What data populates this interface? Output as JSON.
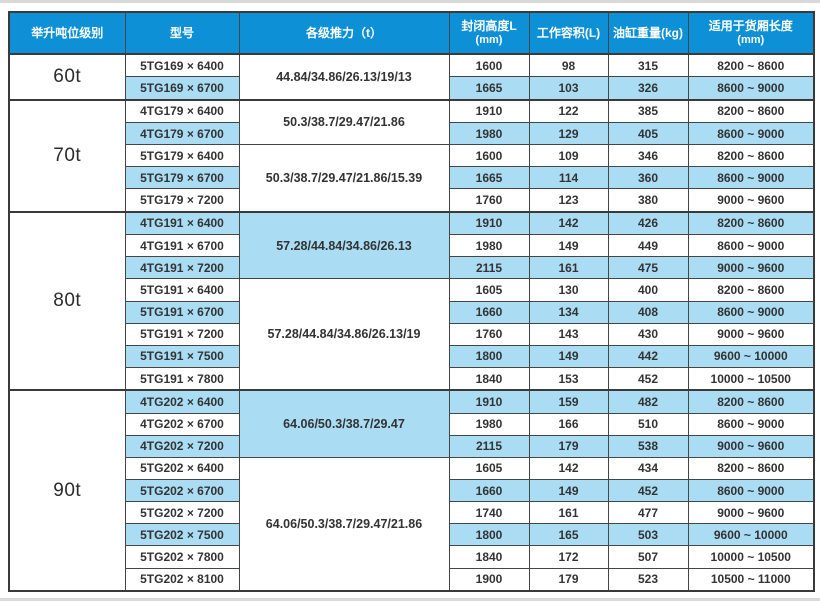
{
  "colors": {
    "header_bg": "#0d90d5",
    "header_text": "#ffffff",
    "row_stripe_bg": "#aadcf4",
    "row_white_bg": "#ffffff",
    "border": "#454545",
    "text": "#333333",
    "page_edge": "#d9d9d9"
  },
  "table": {
    "headers": [
      {
        "label": "举升吨位级别"
      },
      {
        "label": "型号"
      },
      {
        "label": "各级推力（t）"
      },
      {
        "label": "封闭高度L",
        "sub": "(mm)"
      },
      {
        "label": "工作容积(L)"
      },
      {
        "label": "油缸重量(kg)"
      },
      {
        "label": "适用于货厢长度",
        "sub": "(mm)"
      }
    ],
    "groups": [
      {
        "tonnage": "60t",
        "subgroups": [
          {
            "thrust": "44.84/34.86/26.13/19/13",
            "thrust_shade": "white",
            "rows": [
              {
                "model": "5TG169 × 6400",
                "closed_height": "1600",
                "working_volume": "98",
                "cylinder_weight": "315",
                "box_length": "8200 ~ 8600",
                "shade": "white"
              },
              {
                "model": "5TG169 × 6700",
                "closed_height": "1665",
                "working_volume": "103",
                "cylinder_weight": "326",
                "box_length": "8600 ~ 9000",
                "shade": "blue"
              }
            ]
          }
        ]
      },
      {
        "tonnage": "70t",
        "subgroups": [
          {
            "thrust": "50.3/38.7/29.47/21.86",
            "thrust_shade": "white",
            "rows": [
              {
                "model": "4TG179 × 6400",
                "closed_height": "1910",
                "working_volume": "122",
                "cylinder_weight": "385",
                "box_length": "8200 ~ 8600",
                "shade": "white"
              },
              {
                "model": "4TG179 × 6700",
                "closed_height": "1980",
                "working_volume": "129",
                "cylinder_weight": "405",
                "box_length": "8600 ~ 9000",
                "shade": "blue"
              }
            ]
          },
          {
            "thrust": "50.3/38.7/29.47/21.86/15.39",
            "thrust_shade": "white",
            "rows": [
              {
                "model": "5TG179 × 6400",
                "closed_height": "1600",
                "working_volume": "109",
                "cylinder_weight": "346",
                "box_length": "8200 ~ 8600",
                "shade": "white"
              },
              {
                "model": "5TG179 × 6700",
                "closed_height": "1665",
                "working_volume": "114",
                "cylinder_weight": "360",
                "box_length": "8600 ~ 9000",
                "shade": "blue"
              },
              {
                "model": "5TG179 × 7200",
                "closed_height": "1760",
                "working_volume": "123",
                "cylinder_weight": "380",
                "box_length": "9000 ~ 9600",
                "shade": "white"
              }
            ]
          }
        ]
      },
      {
        "tonnage": "80t",
        "subgroups": [
          {
            "thrust": "57.28/44.84/34.86/26.13",
            "thrust_shade": "blue",
            "rows": [
              {
                "model": "4TG191 × 6400",
                "closed_height": "1910",
                "working_volume": "142",
                "cylinder_weight": "426",
                "box_length": "8200 ~ 8600",
                "shade": "blue"
              },
              {
                "model": "4TG191 × 6700",
                "closed_height": "1980",
                "working_volume": "149",
                "cylinder_weight": "449",
                "box_length": "8600 ~ 9000",
                "shade": "white"
              },
              {
                "model": "4TG191 × 7200",
                "closed_height": "2115",
                "working_volume": "161",
                "cylinder_weight": "475",
                "box_length": "9000 ~ 9600",
                "shade": "blue"
              }
            ]
          },
          {
            "thrust": "57.28/44.84/34.86/26.13/19",
            "thrust_shade": "white",
            "rows": [
              {
                "model": "5TG191 × 6400",
                "closed_height": "1605",
                "working_volume": "130",
                "cylinder_weight": "400",
                "box_length": "8200 ~ 8600",
                "shade": "white"
              },
              {
                "model": "5TG191 × 6700",
                "closed_height": "1660",
                "working_volume": "134",
                "cylinder_weight": "408",
                "box_length": "8600 ~ 9000",
                "shade": "blue"
              },
              {
                "model": "5TG191 × 7200",
                "closed_height": "1760",
                "working_volume": "143",
                "cylinder_weight": "430",
                "box_length": "9000 ~ 9600",
                "shade": "white"
              },
              {
                "model": "5TG191 × 7500",
                "closed_height": "1800",
                "working_volume": "149",
                "cylinder_weight": "442",
                "box_length": "9600 ~ 10000",
                "shade": "blue"
              },
              {
                "model": "5TG191 × 7800",
                "closed_height": "1840",
                "working_volume": "153",
                "cylinder_weight": "452",
                "box_length": "10000 ~ 10500",
                "shade": "white"
              }
            ]
          }
        ]
      },
      {
        "tonnage": "90t",
        "subgroups": [
          {
            "thrust": "64.06/50.3/38.7/29.47",
            "thrust_shade": "blue",
            "rows": [
              {
                "model": "4TG202 × 6400",
                "closed_height": "1910",
                "working_volume": "159",
                "cylinder_weight": "482",
                "box_length": "8200 ~ 8600",
                "shade": "blue"
              },
              {
                "model": "4TG202 × 6700",
                "closed_height": "1980",
                "working_volume": "166",
                "cylinder_weight": "510",
                "box_length": "8600 ~ 9000",
                "shade": "white"
              },
              {
                "model": "4TG202 × 7200",
                "closed_height": "2115",
                "working_volume": "179",
                "cylinder_weight": "538",
                "box_length": "9000 ~ 9600",
                "shade": "blue"
              }
            ]
          },
          {
            "thrust": "64.06/50.3/38.7/29.47/21.86",
            "thrust_shade": "white",
            "rows": [
              {
                "model": "5TG202 × 6400",
                "closed_height": "1605",
                "working_volume": "142",
                "cylinder_weight": "434",
                "box_length": "8200 ~ 8600",
                "shade": "white"
              },
              {
                "model": "5TG202 × 6700",
                "closed_height": "1660",
                "working_volume": "149",
                "cylinder_weight": "452",
                "box_length": "8600 ~ 9000",
                "shade": "blue"
              },
              {
                "model": "5TG202 × 7200",
                "closed_height": "1740",
                "working_volume": "161",
                "cylinder_weight": "477",
                "box_length": "9000 ~ 9600",
                "shade": "white"
              },
              {
                "model": "5TG202 × 7500",
                "closed_height": "1800",
                "working_volume": "165",
                "cylinder_weight": "503",
                "box_length": "9600 ~ 10000",
                "shade": "blue"
              },
              {
                "model": "5TG202 × 7800",
                "closed_height": "1840",
                "working_volume": "172",
                "cylinder_weight": "507",
                "box_length": "10000 ~ 10500",
                "shade": "white"
              },
              {
                "model": "5TG202 × 8100",
                "closed_height": "1900",
                "working_volume": "179",
                "cylinder_weight": "523",
                "box_length": "10500 ~ 11000",
                "shade": "white"
              }
            ]
          }
        ]
      }
    ]
  }
}
